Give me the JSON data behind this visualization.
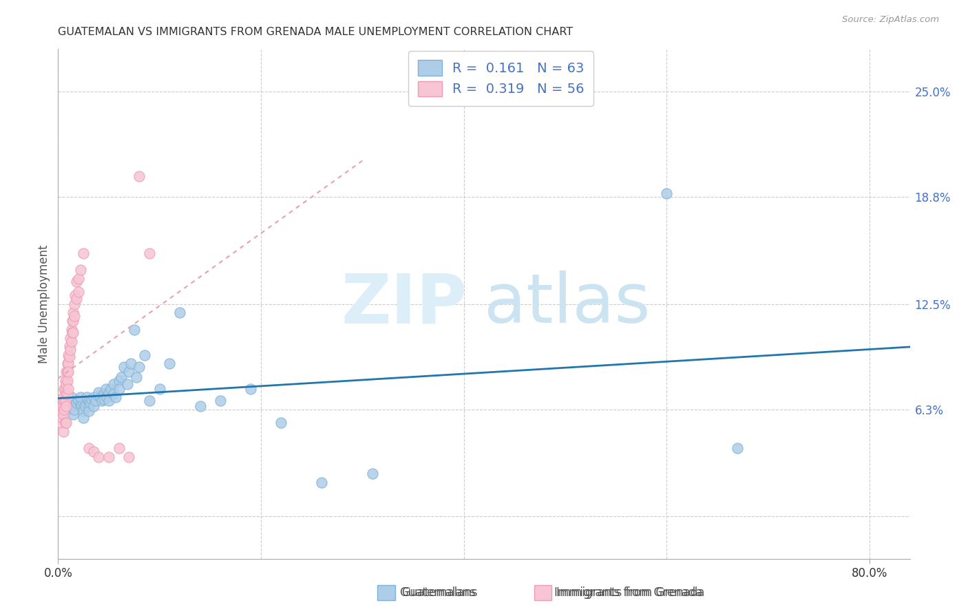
{
  "title": "GUATEMALAN VS IMMIGRANTS FROM GRENADA MALE UNEMPLOYMENT CORRELATION CHART",
  "source": "Source: ZipAtlas.com",
  "ylabel": "Male Unemployment",
  "ytick_vals": [
    0.0,
    0.063,
    0.125,
    0.188,
    0.25
  ],
  "ytick_labels": [
    "",
    "6.3%",
    "12.5%",
    "18.8%",
    "25.0%"
  ],
  "xtick_vals": [
    0.0,
    0.8
  ],
  "xtick_labels": [
    "0.0%",
    "80.0%"
  ],
  "xlim": [
    0.0,
    0.84
  ],
  "ylim": [
    -0.025,
    0.275
  ],
  "blue_face": "#aecde8",
  "blue_edge": "#7fb3d6",
  "pink_face": "#f7c5d4",
  "pink_edge": "#f09ab5",
  "trend_blue_color": "#2176ae",
  "trend_pink_color": "#e8a0b0",
  "grid_color": "#cccccc",
  "R_blue": "0.161",
  "N_blue": "63",
  "R_pink": "0.319",
  "N_pink": "56",
  "legend_text_color": "#4472C4",
  "blue_scatter_x": [
    0.005,
    0.008,
    0.01,
    0.012,
    0.013,
    0.015,
    0.015,
    0.016,
    0.018,
    0.02,
    0.022,
    0.022,
    0.023,
    0.025,
    0.025,
    0.025,
    0.027,
    0.028,
    0.03,
    0.03,
    0.03,
    0.032,
    0.033,
    0.035,
    0.035,
    0.037,
    0.04,
    0.04,
    0.042,
    0.043,
    0.045,
    0.045,
    0.047,
    0.048,
    0.05,
    0.05,
    0.052,
    0.055,
    0.055,
    0.057,
    0.06,
    0.06,
    0.062,
    0.065,
    0.068,
    0.07,
    0.072,
    0.075,
    0.077,
    0.08,
    0.085,
    0.09,
    0.1,
    0.11,
    0.12,
    0.14,
    0.16,
    0.19,
    0.22,
    0.26,
    0.31,
    0.6,
    0.67
  ],
  "blue_scatter_y": [
    0.065,
    0.062,
    0.068,
    0.065,
    0.07,
    0.065,
    0.06,
    0.063,
    0.067,
    0.068,
    0.066,
    0.07,
    0.065,
    0.064,
    0.062,
    0.058,
    0.065,
    0.07,
    0.068,
    0.065,
    0.062,
    0.067,
    0.069,
    0.07,
    0.065,
    0.068,
    0.071,
    0.073,
    0.07,
    0.068,
    0.072,
    0.069,
    0.075,
    0.07,
    0.073,
    0.068,
    0.075,
    0.078,
    0.072,
    0.07,
    0.08,
    0.075,
    0.082,
    0.088,
    0.078,
    0.085,
    0.09,
    0.11,
    0.082,
    0.088,
    0.095,
    0.068,
    0.075,
    0.09,
    0.12,
    0.065,
    0.068,
    0.075,
    0.055,
    0.02,
    0.025,
    0.19,
    0.04
  ],
  "pink_scatter_x": [
    0.003,
    0.003,
    0.004,
    0.004,
    0.005,
    0.005,
    0.005,
    0.005,
    0.006,
    0.006,
    0.006,
    0.007,
    0.007,
    0.007,
    0.007,
    0.008,
    0.008,
    0.008,
    0.008,
    0.008,
    0.009,
    0.009,
    0.009,
    0.009,
    0.01,
    0.01,
    0.01,
    0.01,
    0.011,
    0.011,
    0.012,
    0.012,
    0.013,
    0.013,
    0.014,
    0.014,
    0.015,
    0.015,
    0.015,
    0.016,
    0.016,
    0.017,
    0.018,
    0.018,
    0.02,
    0.02,
    0.022,
    0.025,
    0.03,
    0.035,
    0.04,
    0.05,
    0.06,
    0.07,
    0.08,
    0.09
  ],
  "pink_scatter_y": [
    0.06,
    0.055,
    0.065,
    0.058,
    0.07,
    0.065,
    0.06,
    0.05,
    0.075,
    0.068,
    0.063,
    0.08,
    0.075,
    0.068,
    0.055,
    0.085,
    0.078,
    0.072,
    0.065,
    0.055,
    0.09,
    0.085,
    0.08,
    0.072,
    0.095,
    0.09,
    0.085,
    0.075,
    0.1,
    0.094,
    0.105,
    0.098,
    0.11,
    0.103,
    0.115,
    0.108,
    0.12,
    0.115,
    0.108,
    0.125,
    0.118,
    0.13,
    0.138,
    0.128,
    0.14,
    0.132,
    0.145,
    0.155,
    0.04,
    0.038,
    0.035,
    0.035,
    0.04,
    0.035,
    0.2,
    0.155
  ]
}
